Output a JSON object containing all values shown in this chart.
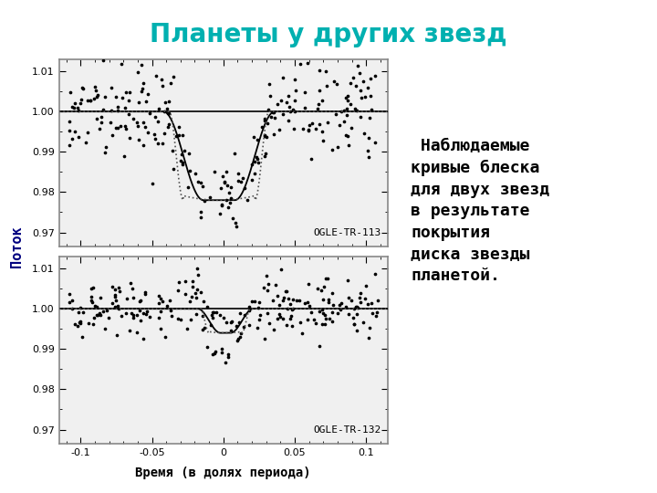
{
  "title": "Планеты у других звезд",
  "title_color": "#00b0b0",
  "xlabel": "Время (в долях периода)",
  "ylabel": "Поток",
  "label1": "OGLE-TR-113",
  "label2": "OGLE-TR-132",
  "annotation": " Наблюдаемые\nкривые блеска\nдля двух звезд\nв результате\nпокрытия\nдиска звезды\nпланетой.",
  "xlim": [
    -0.115,
    0.115
  ],
  "ylim1": [
    0.9665,
    1.013
  ],
  "ylim2": [
    0.9665,
    1.013
  ],
  "yticks1": [
    0.97,
    0.98,
    0.99,
    1.0,
    1.01
  ],
  "yticks2": [
    0.97,
    0.98,
    0.99,
    1.0,
    1.01
  ],
  "xticks": [
    -0.1,
    -0.05,
    0.0,
    0.05,
    0.1
  ],
  "depth1": 0.022,
  "depth2": 0.006,
  "t_ingress1": -0.028,
  "t_egress1": 0.022,
  "t_ingress2": -0.01,
  "t_egress2": 0.013,
  "scatter1": 0.0055,
  "scatter2": 0.0038,
  "n1": 250,
  "n2": 240,
  "seed1": 42,
  "seed2": 99,
  "bg_color": "#ffffff",
  "plot_bg": "#f0f0f0",
  "dot_color": "#000000",
  "dot_size": 7,
  "curve_solid_color": "#000000",
  "curve_dot_color": "#555555",
  "ylabel_color": "#000080",
  "title_fontsize": 20,
  "label_fontsize": 8,
  "tick_fontsize": 8,
  "annotation_fontsize": 13
}
